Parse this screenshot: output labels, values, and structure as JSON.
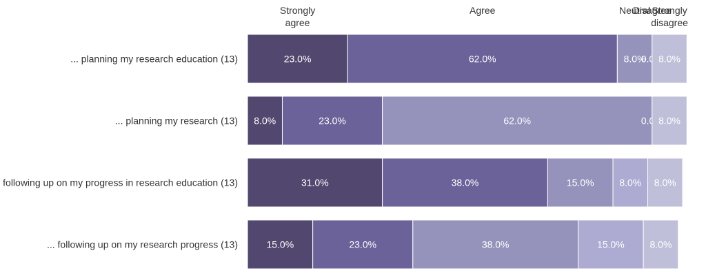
{
  "chart_data": {
    "type": "bar",
    "orientation": "horizontal",
    "stacked": true,
    "normalized_percent": true,
    "legend_position": "top",
    "grid": false,
    "categories": [
      "... planning my research education (13)",
      "... planning my research (13)",
      "following up on my progress in research education (13)",
      "... following up on my research progress (13)"
    ],
    "series": [
      {
        "name": "Strongly agree",
        "legend_lines": [
          "Strongly",
          "agree"
        ],
        "color": "#52476f",
        "values": [
          23.0,
          8.0,
          31.0,
          15.0
        ],
        "labels": [
          "23.0%",
          "8.0%",
          "31.0%",
          "15.0%"
        ]
      },
      {
        "name": "Agree",
        "legend_lines": [
          "Agree"
        ],
        "color": "#6b6299",
        "values": [
          62.0,
          23.0,
          38.0,
          23.0
        ],
        "labels": [
          "62.0%",
          "23.0%",
          "38.0%",
          "23.0%"
        ]
      },
      {
        "name": "Neutral",
        "legend_lines": [
          "Neutral"
        ],
        "color": "#9593bb",
        "values": [
          8.0,
          62.0,
          15.0,
          38.0
        ],
        "labels": [
          "8.0%",
          "62.0%",
          "15.0%",
          "38.0%"
        ]
      },
      {
        "name": "Disagree",
        "legend_lines": [
          "Disagree"
        ],
        "color": "#adabd1",
        "values": [
          0.0,
          0.0,
          8.0,
          15.0
        ],
        "labels": [
          "0.0%",
          "0.0%",
          "8.0%",
          "15.0%"
        ]
      },
      {
        "name": "Strongly disagree",
        "legend_lines": [
          "Strongly",
          "disagree"
        ],
        "color": "#c0bfd9",
        "values": [
          8.0,
          8.0,
          8.0,
          8.0
        ],
        "labels": [
          "8.0%",
          "8.0%",
          "8.0%",
          "8.0%"
        ]
      }
    ],
    "xlim": [
      0,
      100
    ]
  }
}
